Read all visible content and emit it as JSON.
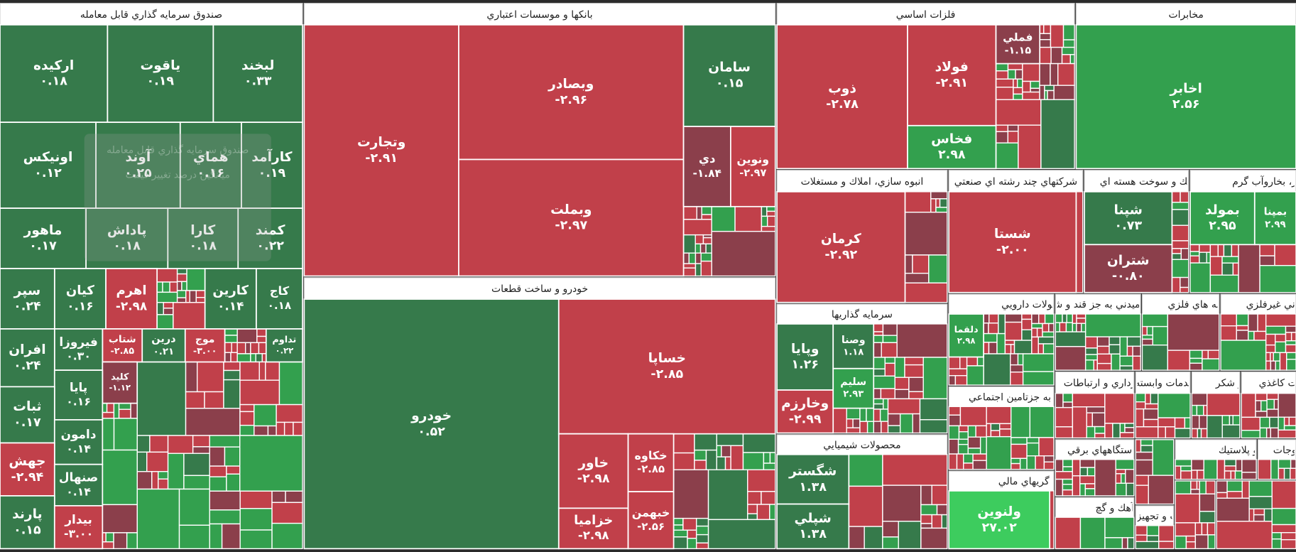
{
  "sectors": [
    {
      "name": "صندوق سرمايه گذاري قابل معامله",
      "stocks": [
        {
          "name": "لبخند",
          "change": "۰.۳۳",
          "color": "#367a4b"
        },
        {
          "name": "ياقوت",
          "change": "۰.۱۹",
          "color": "#367a4b"
        },
        {
          "name": "اركيده",
          "change": "۰.۱۸",
          "color": "#367a4b"
        },
        {
          "name": "كارآمد",
          "change": "۰.۱۹",
          "color": "#367a4b"
        },
        {
          "name": "هماي",
          "change": "۰.۱۶",
          "color": "#367a4b"
        },
        {
          "name": "آوند",
          "change": "۰.۲۵",
          "color": "#367a4b"
        },
        {
          "name": "اونيكس",
          "change": "۰.۱۲",
          "color": "#367a4b"
        },
        {
          "name": "كمند",
          "change": "۰.۲۲",
          "color": "#367a4b"
        },
        {
          "name": "كارا",
          "change": "۰.۱۸",
          "color": "#367a4b"
        },
        {
          "name": "پاداش",
          "change": "۰.۱۸",
          "color": "#367a4b"
        },
        {
          "name": "ماهور",
          "change": "۰.۱۷",
          "color": "#367a4b"
        },
        {
          "name": "كاج",
          "change": "۰.۱۸",
          "color": "#367a4b"
        },
        {
          "name": "كارين",
          "change": "۰.۱۴",
          "color": "#367a4b"
        },
        {
          "name": "اهرم",
          "change": "-۲.۹۸",
          "color": "#c1404a"
        },
        {
          "name": "كيان",
          "change": "۰.۱۶",
          "color": "#367a4b"
        },
        {
          "name": "سپر",
          "change": "۰.۲۴",
          "color": "#367a4b"
        },
        {
          "name": "تداوم",
          "change": "۰.۲۲",
          "color": "#367a4b"
        },
        {
          "name": "موج",
          "change": "-۳.۰۰",
          "color": "#c1404a"
        },
        {
          "name": "درين",
          "change": "۰.۲۱",
          "color": "#367a4b"
        },
        {
          "name": "شتاب",
          "change": "-۲.۸۵",
          "color": "#c1404a"
        },
        {
          "name": "فيروزا",
          "change": "۰.۳۰",
          "color": "#367a4b"
        },
        {
          "name": "افران",
          "change": "۰.۲۴",
          "color": "#367a4b"
        },
        {
          "name": "كليد",
          "change": "-۱.۱۲",
          "color": "#8b3f4b"
        },
        {
          "name": "پايا",
          "change": "۰.۱۶",
          "color": "#367a4b"
        },
        {
          "name": "ثبات",
          "change": "۰.۱۷",
          "color": "#367a4b"
        },
        {
          "name": "دامون",
          "change": "۰.۱۴",
          "color": "#367a4b"
        },
        {
          "name": "جهش",
          "change": "-۲.۹۴",
          "color": "#c1404a"
        },
        {
          "name": "صنهال",
          "change": "۰.۱۴",
          "color": "#367a4b"
        },
        {
          "name": "پارند",
          "change": "۰.۱۵",
          "color": "#367a4b"
        },
        {
          "name": "بيدار",
          "change": "-۳.۰۰",
          "color": "#c1404a"
        }
      ]
    },
    {
      "name": "بانكها و موسسات اعتباري",
      "stocks": [
        {
          "name": "وتجارت",
          "change": "-۲.۹۱",
          "color": "#c1404a"
        },
        {
          "name": "وبصادر",
          "change": "-۲.۹۶",
          "color": "#c1404a"
        },
        {
          "name": "وبملت",
          "change": "-۲.۹۷",
          "color": "#c1404a"
        },
        {
          "name": "سامان",
          "change": "۰.۱۵",
          "color": "#367a4b"
        },
        {
          "name": "دي",
          "change": "-۱.۸۴",
          "color": "#8b3f4b"
        },
        {
          "name": "ونوين",
          "change": "-۲.۹۷",
          "color": "#c1404a"
        }
      ]
    },
    {
      "name": "خودرو و ساخت قطعات",
      "stocks": [
        {
          "name": "خودرو",
          "change": "۰.۵۲",
          "color": "#367a4b"
        },
        {
          "name": "خساپا",
          "change": "-۲.۸۵",
          "color": "#c1404a"
        },
        {
          "name": "خاور",
          "change": "-۲.۹۸",
          "color": "#c1404a"
        },
        {
          "name": "خزاميا",
          "change": "-۲.۹۸",
          "color": "#c1404a"
        },
        {
          "name": "خكاوه",
          "change": "-۲.۸۵",
          "color": "#c1404a"
        },
        {
          "name": "خبهمن",
          "change": "-۲.۵۶",
          "color": "#c1404a"
        }
      ]
    },
    {
      "name": "فلزات اساسي",
      "stocks": [
        {
          "name": "ذوب",
          "change": "-۲.۷۸",
          "color": "#c1404a"
        },
        {
          "name": "فولاد",
          "change": "-۲.۹۱",
          "color": "#c1404a"
        },
        {
          "name": "فملي",
          "change": "-۱.۱۵",
          "color": "#8b3f4b"
        },
        {
          "name": "فخاس",
          "change": "۲.۹۸",
          "color": "#33a04e"
        }
      ]
    },
    {
      "name": "مخابرات",
      "stocks": [
        {
          "name": "اخابر",
          "change": "۲.۵۶",
          "color": "#33a04e"
        }
      ]
    },
    {
      "name": "انبوه سازي، املاك و مستغلات",
      "stocks": [
        {
          "name": "كرمان",
          "change": "-۲.۹۲",
          "color": "#c1404a"
        }
      ]
    },
    {
      "name": "شركتهاي چند رشته اي صنعتي",
      "stocks": [
        {
          "name": "شستا",
          "change": "-۲.۰۰",
          "color": "#c1404a"
        }
      ]
    },
    {
      "name": "فرآورده هاي نفتي، كك و سوخت هسته اي",
      "stocks": [
        {
          "name": "شپنا",
          "change": "۰.۷۳",
          "color": "#367a4b"
        },
        {
          "name": "شتران",
          "change": "-۰.۸۰",
          "color": "#8b3f4b"
        }
      ]
    },
    {
      "name": "عرضه برق، گاز، بخاروآب گرم",
      "stocks": [
        {
          "name": "بمولد",
          "change": "۲.۹۵",
          "color": "#33a04e"
        },
        {
          "name": "بمپنا",
          "change": "۲.۹۹",
          "color": "#33a04e"
        }
      ]
    },
    {
      "name": "سرمايه گذاريها",
      "stocks": [
        {
          "name": "وپايا",
          "change": "۱.۲۶",
          "color": "#367a4b"
        },
        {
          "name": "وخارزم",
          "change": "-۲.۹۹",
          "color": "#c1404a"
        },
        {
          "name": "وصنا",
          "change": "۱.۱۸",
          "color": "#367a4b"
        },
        {
          "name": "سليم",
          "change": "۲.۹۳",
          "color": "#33a04e"
        }
      ]
    },
    {
      "name": "محصولات شيميايي",
      "stocks": [
        {
          "name": "شگستر",
          "change": "۱.۳۸",
          "color": "#367a4b"
        },
        {
          "name": "شپلي",
          "change": "۱.۳۸",
          "color": "#367a4b"
        }
      ]
    },
    {
      "name": "مواد و محصولات دارويي",
      "stocks": [
        {
          "name": "دلقما",
          "change": "۲.۹۸",
          "color": "#33a04e"
        }
      ]
    },
    {
      "name": "صندوق بازنشستگي به جزتامين اجتماعي",
      "stocks": []
    },
    {
      "name": "ساير واسطه گريهاي مالي",
      "stocks": [
        {
          "name": "ولنوين",
          "change": "۲۷.۰۲",
          "color": "#3dcc5e"
        }
      ]
    },
    {
      "name": "محصولات غذايي و آشاميدني به جز قند و شكر",
      "stocks": []
    },
    {
      "name": "استخراج كانه هاي فلزي",
      "stocks": []
    },
    {
      "name": "استخراج كاني غيرفلزي",
      "stocks": []
    },
    {
      "name": "حمل و نقل، انبارداري و ارتباطات",
      "stocks": []
    },
    {
      "name": "اطلاعات و خدمات وابسته",
      "stocks": []
    },
    {
      "name": "قند و شكر",
      "stocks": []
    },
    {
      "name": "محصولات كاغذي",
      "stocks": []
    },
    {
      "name": "ماشين آلات و دستگاههاي برقي",
      "stocks": []
    },
    {
      "name": "لاستيك و پلاستيك",
      "stocks": []
    },
    {
      "name": "سيمان، آهك و گچ",
      "stocks": []
    },
    {
      "name": "ماشين آلات و تجهيزات",
      "stocks": []
    },
    {
      "name": "منسوجات",
      "stocks": []
    }
  ],
  "tooltip": {
    "title": "صندوق سرمايه گذاري قابل معامله",
    "subtitle": "ميانگين درصد تغيير قيمت"
  }
}
